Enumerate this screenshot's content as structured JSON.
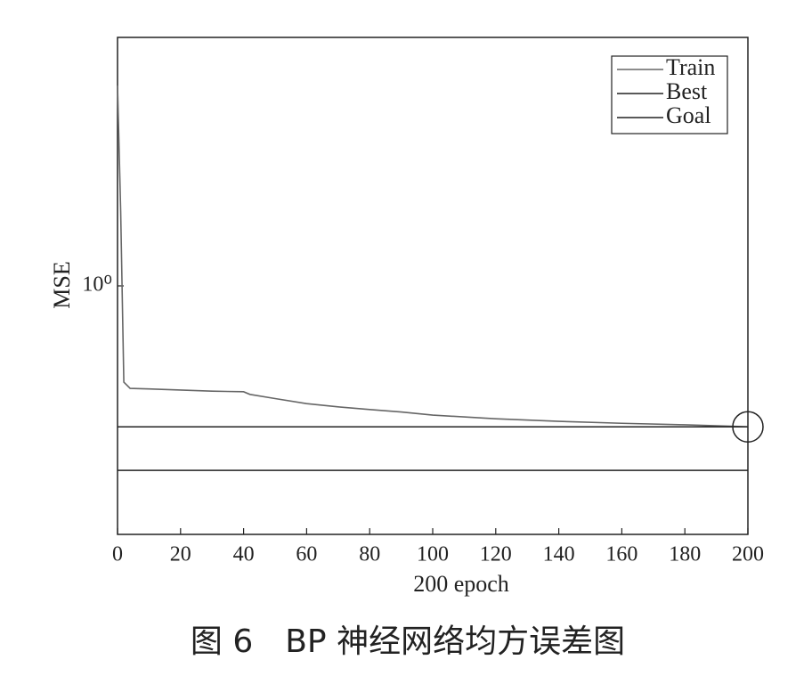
{
  "chart_data": {
    "type": "line",
    "yscale": "log",
    "xlabel": "200 epoch",
    "ylabel": "MSE",
    "x": [
      0,
      1,
      2,
      4,
      10,
      20,
      30,
      40,
      42,
      50,
      60,
      70,
      80,
      90,
      100,
      120,
      140,
      160,
      180,
      200
    ],
    "series": [
      {
        "name": "Train",
        "color": "#666666",
        "values": [
          6.4,
          2.0,
          0.41,
          0.387,
          0.385,
          0.381,
          0.377,
          0.375,
          0.366,
          0.352,
          0.336,
          0.326,
          0.318,
          0.311,
          0.302,
          0.292,
          0.285,
          0.28,
          0.276,
          0.271
        ]
      }
    ],
    "best": {
      "name": "Best",
      "color": "#222222",
      "x": 200,
      "value": 0.271
    },
    "goal": {
      "name": "Goal",
      "color": "#222222",
      "value": 0.181
    },
    "xlim": [
      0,
      200
    ],
    "xticks": [
      0,
      20,
      40,
      60,
      80,
      100,
      120,
      140,
      160,
      180,
      200
    ],
    "ylim": [
      0.1,
      10
    ],
    "yticks": [
      {
        "value": 1,
        "label": "10⁰"
      }
    ],
    "legend": "top-right"
  },
  "caption": "图 6　BP 神经网络均方误差图"
}
